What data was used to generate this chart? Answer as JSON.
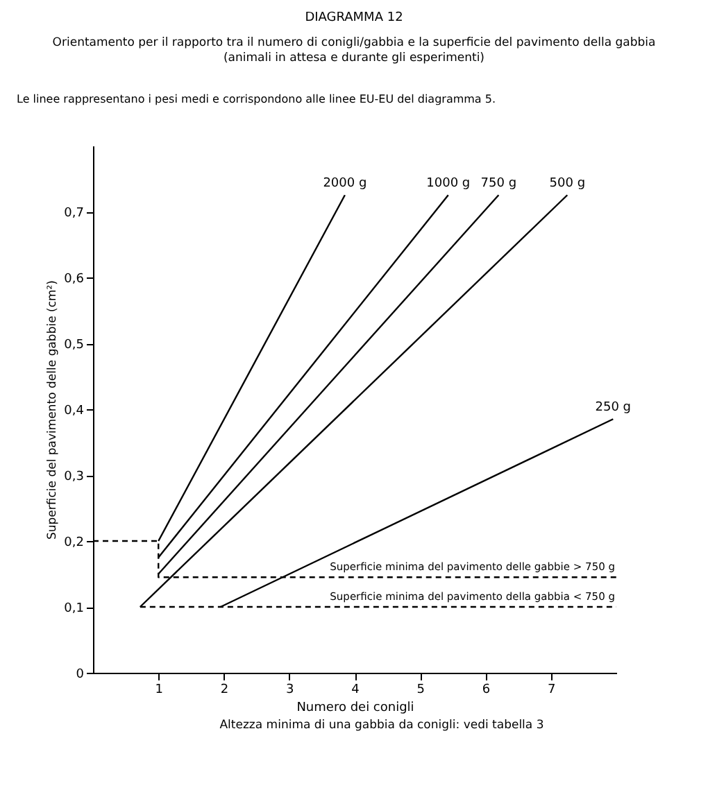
{
  "chart_data": {
    "type": "line",
    "title": "DIAGRAMMA 12",
    "subtitle": "Orientamento per il rapporto tra il numero di conigli/gabbia e la superficie del pavimento della gabbia\n(animali in attesa e durante gli esperimenti)",
    "xlabel": "Numero dei conigli",
    "ylabel": "Superficie del pavimento delle gabbie (cm²)",
    "annotations": [
      "Le linee rappresentano i pesi medi e corrispondono alle linee EU-EU del diagramma 5.",
      "Altezza minima di una gabbia da conigli: vedi tabella 3",
      {
        "text": "Superficie minima del pavimento delle gabbie > 750 g",
        "x": 5.8,
        "y": 0.145
      },
      {
        "text": "Superficie minima del pavimento della gabbia < 750 g",
        "x": 5.8,
        "y": 0.1
      }
    ],
    "series": [
      {
        "name": "2000 g",
        "color": "#000000",
        "x": [
          1,
          3.85
        ],
        "values": [
          0.2,
          0.725
        ]
      },
      {
        "name": "1000 g",
        "color": "#000000",
        "x": [
          1,
          5.43
        ],
        "values": [
          0.175,
          0.725
        ]
      },
      {
        "name": "750 g",
        "color": "#000000",
        "x": [
          1,
          6.2
        ],
        "values": [
          0.15,
          0.725
        ]
      },
      {
        "name": "500 g",
        "color": "#000000",
        "x": [
          0.72,
          7.25
        ],
        "values": [
          0.1,
          0.725
        ]
      },
      {
        "name": "250 g",
        "color": "#000000",
        "x": [
          1.95,
          7.95
        ],
        "values": [
          0.1,
          0.385
        ]
      },
      {
        "color": "#000000",
        "line_style": "dashed",
        "x": [
          0,
          1,
          1,
          8
        ],
        "values": [
          0.2,
          0.2,
          0.145,
          0.145
        ]
      },
      {
        "color": "#000000",
        "line_style": "dashed",
        "x": [
          0.72,
          8
        ],
        "values": [
          0.1,
          0.1
        ]
      }
    ],
    "xlim": [
      0,
      8
    ],
    "ylim": [
      0,
      0.8
    ],
    "xticks": [
      1,
      2,
      3,
      4,
      5,
      6,
      7
    ],
    "yticks": [
      0,
      {
        "value": 0.1,
        "label": "0,1"
      },
      {
        "value": 0.2,
        "label": "0,2"
      },
      {
        "value": 0.3,
        "label": "0,3"
      },
      {
        "value": 0.4,
        "label": "0,4"
      },
      {
        "value": 0.5,
        "label": "0,5"
      },
      {
        "value": 0.6,
        "label": "0,6"
      },
      {
        "value": 0.7,
        "label": "0,7"
      }
    ],
    "grid": false,
    "legend": false
  }
}
